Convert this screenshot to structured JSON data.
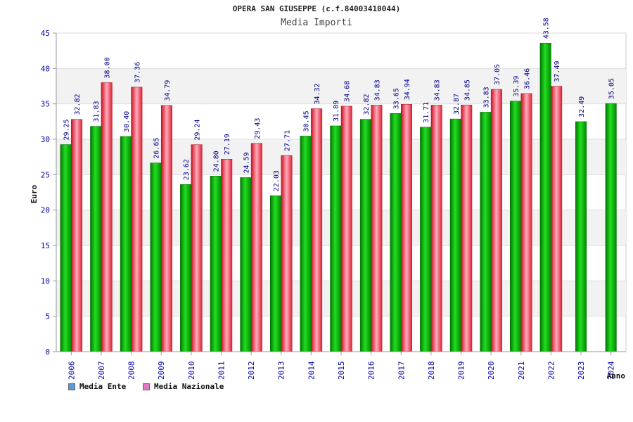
{
  "header": {
    "title": "OPERA SAN GIUSEPPE (c.f.84003410044)",
    "subtitle": "Media Importi"
  },
  "legend": {
    "series1": "Media Ente",
    "series2": "Media Nazionale"
  },
  "colors": {
    "ente": "#00b000",
    "nazionale": "#ee3344",
    "axis_text": "#0000aa",
    "band": "#f2f2f2"
  },
  "chart_data": {
    "type": "bar",
    "title": "Media Importi",
    "xlabel": "Anno",
    "ylabel": "Euro",
    "ylim": [
      0,
      45
    ],
    "yticks": [
      0,
      5,
      10,
      15,
      20,
      25,
      30,
      35,
      40,
      45
    ],
    "categories": [
      "2006",
      "2007",
      "2008",
      "2009",
      "2010",
      "2011",
      "2012",
      "2013",
      "2014",
      "2015",
      "2016",
      "2017",
      "2018",
      "2019",
      "2020",
      "2021",
      "2022",
      "2023",
      "2024"
    ],
    "series": [
      {
        "name": "Media Ente",
        "values": [
          29.25,
          31.83,
          30.4,
          26.65,
          23.62,
          24.8,
          24.59,
          22.03,
          30.45,
          31.89,
          32.82,
          33.65,
          31.71,
          32.87,
          33.83,
          35.39,
          43.58,
          32.49,
          35.05
        ],
        "labels": [
          "29.25",
          "31.83",
          "30.40",
          "26.65",
          "23.62",
          "24.80",
          "24.59",
          "22.03",
          "30.45",
          "31.89",
          "32.82",
          "33.65",
          "31.71",
          "32.87",
          "33.83",
          "35.39",
          "43.58",
          "32.49",
          "35.05"
        ]
      },
      {
        "name": "Media Nazionale",
        "values": [
          32.82,
          38.0,
          37.36,
          34.79,
          29.24,
          27.19,
          29.43,
          27.71,
          34.32,
          34.68,
          34.83,
          34.94,
          34.83,
          34.85,
          37.05,
          36.46,
          37.49,
          null,
          null
        ],
        "labels": [
          "32.82",
          "38.00",
          "37.36",
          "34.79",
          "29.24",
          "27.19",
          "29.43",
          "27.71",
          "34.32",
          "34.68",
          "34.83",
          "34.94",
          "34.83",
          "34.85",
          "37.05",
          "36.46",
          "37.49",
          null,
          null
        ]
      }
    ]
  }
}
